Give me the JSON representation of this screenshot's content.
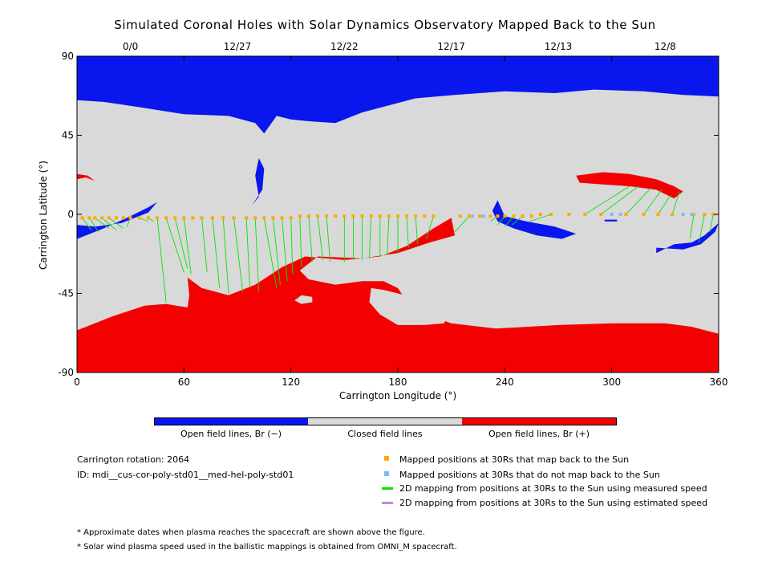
{
  "title": "Simulated Coronal Holes with Solar Dynamics Observatory Mapped Back to the Sun",
  "colors": {
    "open_negative": "#0a16ee",
    "closed": "#d9d9d9",
    "open_positive": "#f40000",
    "mapped": "#ffaa00",
    "unmapped": "#7fb8f8",
    "measured_line": "#00e600",
    "estimated_line": "#bb88ee"
  },
  "chart_data": {
    "type": "heatmap",
    "xlabel": "Carrington Longitude (°)",
    "ylabel": "Carrington Latitude (°)",
    "xlim": [
      0,
      360
    ],
    "ylim": [
      -90,
      90
    ],
    "x_ticks": [
      0,
      60,
      120,
      180,
      240,
      300,
      360
    ],
    "y_ticks": [
      -90,
      -45,
      0,
      45,
      90
    ],
    "x_tick_labels": [
      "0",
      "60",
      "120",
      "180",
      "240",
      "300",
      "360"
    ],
    "y_tick_labels": [
      "-90",
      "-45",
      "0",
      "45",
      "90"
    ],
    "top_axis": {
      "labels": [
        "0/0",
        "12/27",
        "12/22",
        "12/17",
        "12/13",
        "12/8"
      ],
      "longitudes": [
        30,
        90,
        150,
        210,
        270,
        330
      ]
    },
    "regions": [
      {
        "name": "Open field lines, Br (−)",
        "polarity": "negative",
        "outline": [
          [
            0,
            90
          ],
          [
            360,
            90
          ],
          [
            360,
            67
          ],
          [
            340,
            68
          ],
          [
            318,
            70
          ],
          [
            290,
            71
          ],
          [
            268,
            69
          ],
          [
            240,
            70
          ],
          [
            212,
            68
          ],
          [
            190,
            66
          ],
          [
            160,
            58
          ],
          [
            145,
            52
          ],
          [
            130,
            53
          ],
          [
            120,
            54
          ],
          [
            112,
            56
          ],
          [
            105,
            46
          ],
          [
            100,
            52
          ],
          [
            85,
            56
          ],
          [
            60,
            57
          ],
          [
            35,
            61
          ],
          [
            15,
            64
          ],
          [
            0,
            65
          ]
        ]
      },
      {
        "name": "Open field lines, Br (+)",
        "polarity": "positive",
        "outline": [
          [
            0,
            -90
          ],
          [
            360,
            -90
          ],
          [
            360,
            -68
          ],
          [
            345,
            -64
          ],
          [
            330,
            -62
          ],
          [
            300,
            -62
          ],
          [
            270,
            -63
          ],
          [
            235,
            -65
          ],
          [
            210,
            -62
          ],
          [
            190,
            -55
          ],
          [
            182,
            -45
          ],
          [
            180,
            -42
          ],
          [
            172,
            -38
          ],
          [
            160,
            -38
          ],
          [
            145,
            -40
          ],
          [
            130,
            -37
          ],
          [
            125,
            -32
          ],
          [
            135,
            -24
          ],
          [
            160,
            -25
          ],
          [
            180,
            -22
          ],
          [
            198,
            -16
          ],
          [
            212,
            -12
          ],
          [
            210,
            -2
          ],
          [
            200,
            -8
          ],
          [
            185,
            -18
          ],
          [
            170,
            -24
          ],
          [
            150,
            -26
          ],
          [
            128,
            -24
          ],
          [
            115,
            -30
          ],
          [
            100,
            -40
          ],
          [
            85,
            -46
          ],
          [
            70,
            -42
          ],
          [
            62,
            -36
          ],
          [
            63,
            -46
          ],
          [
            62,
            -53
          ],
          [
            50,
            -51
          ],
          [
            38,
            -52
          ],
          [
            20,
            -58
          ],
          [
            0,
            -66
          ]
        ]
      },
      {
        "name": "Closed field island",
        "polarity": "closed",
        "outline": [
          [
            165,
            -42
          ],
          [
            172,
            -43
          ],
          [
            180,
            -45
          ],
          [
            188,
            -47
          ],
          [
            199,
            -50
          ],
          [
            208,
            -56
          ],
          [
            206,
            -62
          ],
          [
            195,
            -63
          ],
          [
            180,
            -63
          ],
          [
            170,
            -57
          ],
          [
            164,
            -50
          ]
        ]
      },
      {
        "name": "Closed field island",
        "polarity": "closed",
        "outline": [
          [
            126,
            -46
          ],
          [
            132,
            -47
          ],
          [
            132,
            -50
          ],
          [
            126,
            -51
          ],
          [
            122,
            -49
          ]
        ]
      },
      {
        "name": "Northern positive patch",
        "polarity": "positive",
        "outline": [
          [
            280,
            22
          ],
          [
            295,
            24
          ],
          [
            310,
            23
          ],
          [
            325,
            20
          ],
          [
            335,
            16
          ],
          [
            340,
            13
          ],
          [
            335,
            9
          ],
          [
            325,
            14
          ],
          [
            310,
            16
          ],
          [
            295,
            17
          ],
          [
            282,
            18
          ]
        ]
      },
      {
        "name": "Western positive sliver",
        "polarity": "positive",
        "outline": [
          [
            0,
            23
          ],
          [
            6,
            22
          ],
          [
            10,
            19
          ],
          [
            5,
            21
          ],
          [
            0,
            20
          ]
        ]
      },
      {
        "name": "Near-equator negative (west)",
        "polarity": "negative",
        "outline": [
          [
            0,
            -6
          ],
          [
            10,
            -7
          ],
          [
            25,
            -5
          ],
          [
            40,
            1
          ],
          [
            45,
            7
          ],
          [
            40,
            4
          ],
          [
            30,
            -1
          ],
          [
            15,
            -8
          ],
          [
            0,
            -14
          ]
        ]
      },
      {
        "name": "Vertical negative sliver",
        "polarity": "negative",
        "outline": [
          [
            102,
            32
          ],
          [
            105,
            26
          ],
          [
            104,
            14
          ],
          [
            98,
            5
          ],
          [
            102,
            10
          ],
          [
            100,
            22
          ]
        ]
      },
      {
        "name": "Near-equator negative (center)",
        "polarity": "negative",
        "outline": [
          [
            233,
            2
          ],
          [
            236,
            8
          ],
          [
            240,
            -1
          ],
          [
            252,
            -4
          ],
          [
            268,
            -7
          ],
          [
            280,
            -11
          ],
          [
            272,
            -14
          ],
          [
            258,
            -12
          ],
          [
            245,
            -8
          ],
          [
            236,
            -4
          ]
        ]
      },
      {
        "name": "Eastern negative patch",
        "polarity": "negative",
        "outline": [
          [
            325,
            -19
          ],
          [
            340,
            -20
          ],
          [
            350,
            -17
          ],
          [
            358,
            -10
          ],
          [
            360,
            -5
          ],
          [
            352,
            -12
          ],
          [
            345,
            -16
          ],
          [
            335,
            -17
          ],
          [
            325,
            -22
          ]
        ]
      },
      {
        "name": "Small negative dash",
        "polarity": "negative",
        "outline": [
          [
            296,
            -3
          ],
          [
            303,
            -3
          ],
          [
            303,
            -4
          ],
          [
            296,
            -4
          ]
        ]
      }
    ],
    "series": [
      {
        "name": "Mapped positions at 30Rs that map back to the Sun",
        "x": [
          3,
          7,
          10,
          14,
          18,
          22,
          26,
          30,
          35,
          40,
          45,
          50,
          55,
          60,
          65,
          70,
          76,
          82,
          88,
          95,
          100,
          105,
          110,
          115,
          120,
          125,
          130,
          135,
          140,
          145,
          150,
          155,
          160,
          165,
          170,
          175,
          180,
          185,
          190,
          195,
          200,
          215,
          220,
          226,
          232,
          236,
          240,
          245,
          250,
          255,
          260,
          266,
          276,
          285,
          294,
          308,
          318,
          326,
          334,
          346,
          352,
          357
        ],
        "y": [
          -2,
          -2,
          -2,
          -2,
          -2,
          -2,
          -2,
          -2,
          -2,
          -2,
          -2,
          -2,
          -2,
          -2,
          -2,
          -2,
          -2,
          -2,
          -2,
          -2,
          -2,
          -2,
          -2,
          -2,
          -2,
          -1,
          -1,
          -1,
          -1,
          -1,
          -1,
          -1,
          -1,
          -1,
          -1,
          -1,
          -1,
          -1,
          -1,
          -1,
          -1,
          -1,
          -1,
          -1,
          -1,
          -1,
          -1,
          -1,
          -1,
          -1,
          0,
          0,
          0,
          0,
          0,
          0,
          0,
          0,
          0,
          0,
          0,
          0
        ]
      },
      {
        "name": "Mapped positions at 30Rs that do not map back to the Sun",
        "x": [
          222,
          228,
          300,
          305,
          340,
          345
        ],
        "y": [
          -1,
          -1,
          0,
          0,
          0,
          0
        ]
      },
      {
        "name": "2D mapping from positions at 30Rs to the Sun using measured speed",
        "segments": [
          [
            3,
            -2,
            8,
            -9
          ],
          [
            7,
            -2,
            12,
            -10
          ],
          [
            10,
            -2,
            18,
            -8
          ],
          [
            14,
            -2,
            22,
            -9
          ],
          [
            18,
            -2,
            26,
            -8
          ],
          [
            30,
            -2,
            28,
            -7
          ],
          [
            35,
            -2,
            40,
            -4
          ],
          [
            40,
            -2,
            43,
            -4
          ],
          [
            45,
            -2,
            50,
            -50
          ],
          [
            50,
            -2,
            60,
            -33
          ],
          [
            55,
            -2,
            62,
            -31
          ],
          [
            60,
            -2,
            64,
            -34
          ],
          [
            70,
            -2,
            73,
            -33
          ],
          [
            76,
            -2,
            80,
            -42
          ],
          [
            82,
            -2,
            85,
            -45
          ],
          [
            88,
            -2,
            93,
            -44
          ],
          [
            95,
            -2,
            97,
            -42
          ],
          [
            100,
            -2,
            102,
            -44
          ],
          [
            105,
            -2,
            112,
            -42
          ],
          [
            110,
            -2,
            114,
            -40
          ],
          [
            115,
            -2,
            118,
            -38
          ],
          [
            120,
            -2,
            121,
            -34
          ],
          [
            125,
            -1,
            126,
            -30
          ],
          [
            130,
            -1,
            132,
            -27
          ],
          [
            135,
            -1,
            138,
            -26
          ],
          [
            140,
            -1,
            142,
            -27
          ],
          [
            150,
            -1,
            150,
            -27
          ],
          [
            155,
            -1,
            155,
            -26
          ],
          [
            160,
            -1,
            160,
            -26
          ],
          [
            165,
            -1,
            164,
            -25
          ],
          [
            170,
            -1,
            170,
            -24
          ],
          [
            175,
            -1,
            174,
            -23
          ],
          [
            180,
            -1,
            180,
            -22
          ],
          [
            185,
            -1,
            186,
            -19
          ],
          [
            190,
            -1,
            191,
            -17
          ],
          [
            200,
            -1,
            196,
            -14
          ],
          [
            220,
            -1,
            212,
            -10
          ],
          [
            236,
            -1,
            232,
            -4
          ],
          [
            240,
            -1,
            236,
            -6
          ],
          [
            245,
            -1,
            240,
            -7
          ],
          [
            250,
            -1,
            244,
            -6
          ],
          [
            266,
            0,
            254,
            -4
          ],
          [
            285,
            0,
            310,
            16
          ],
          [
            294,
            0,
            315,
            16
          ],
          [
            308,
            0,
            322,
            15
          ],
          [
            318,
            0,
            328,
            14
          ],
          [
            326,
            0,
            333,
            11
          ],
          [
            334,
            0,
            338,
            13
          ],
          [
            346,
            0,
            344,
            -14
          ],
          [
            352,
            0,
            349,
            -16
          ],
          [
            357,
            0,
            355,
            -10
          ]
        ]
      },
      {
        "name": "2D mapping from positions at 30Rs to the Sun using estimated speed",
        "segments": []
      }
    ]
  },
  "colorbar": {
    "labels": [
      "Open field lines, Br (−)",
      "Closed field lines",
      "Open field lines, Br (+)"
    ]
  },
  "info": {
    "rotation": "Carrington rotation: 2064",
    "id": "ID: mdi__cus-cor-poly-std01__med-hel-poly-std01"
  },
  "legend": {
    "mapped": "Mapped positions at 30Rs that map back to the Sun",
    "unmapped": "Mapped positions at 30Rs that do not map back to the Sun",
    "measured": "2D mapping from positions at 30Rs to the Sun using measured speed",
    "estimated": "2D mapping from positions at 30Rs to the Sun using estimated speed"
  },
  "notes": [
    "* Approximate dates when plasma reaches the spacecraft are shown above the figure.",
    "* Solar wind plasma speed used in the ballistic mappings is obtained from OMNI_M spacecraft."
  ]
}
